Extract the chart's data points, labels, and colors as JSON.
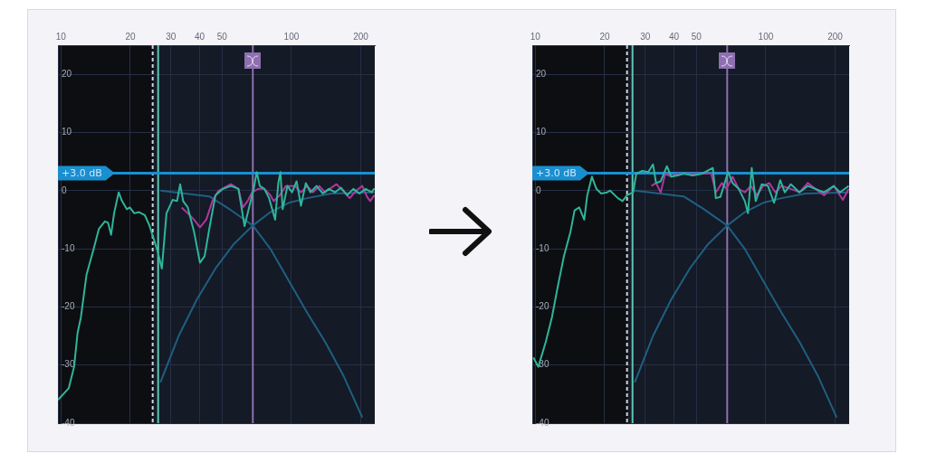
{
  "chart_data": [
    {
      "type": "line",
      "log": "x",
      "xlim": [
        9.7,
        230
      ],
      "ylim": [
        -40,
        25
      ],
      "xticks": [
        10,
        20,
        30,
        40,
        50,
        100,
        200
      ],
      "yticks": [
        -40,
        -30,
        -20,
        -10,
        0,
        10,
        20
      ],
      "grid": true,
      "series": [
        {
          "type": "line",
          "color": "#2fb59a",
          "x": [
            9.7,
            10.8,
            11.4,
            11.8,
            12.2,
            12.9,
            13.8,
            14.6,
            15.5,
            16.0,
            16.5,
            17.0,
            17.8,
            18.4,
            19.3,
            19.9,
            20.8,
            21.8,
            23.1,
            24.2,
            25.2,
            26.2,
            27.4,
            28.7,
            30.5,
            31.9,
            32.9,
            33.9,
            35.5,
            37.8,
            40.1,
            42.0,
            44.0,
            46.8,
            50.5,
            54.6,
            58.9,
            60.7,
            62.6,
            65.5,
            68.6,
            70.7,
            72.9,
            76.3,
            80.0,
            82.5,
            85.0,
            87.7,
            89.6,
            91.6,
            96.1,
            100.6,
            105.3,
            110,
            115.5,
            120.9,
            128.5,
            136.9,
            145.3,
            154.5,
            164.2,
            174.6,
            185.6,
            197.3,
            209.8,
            223,
            229
          ],
          "values": [
            -36,
            -34,
            -30.3,
            -24.5,
            -21.8,
            -14.5,
            -10.3,
            -6.6,
            -5.3,
            -5.5,
            -7.6,
            -3.9,
            -0.3,
            -1.8,
            -3.2,
            -2.9,
            -3.9,
            -3.7,
            -4.2,
            -6,
            -8.2,
            -10.3,
            -13.4,
            -3.9,
            -1.6,
            -1.8,
            1.1,
            -1.8,
            -2.9,
            -7.1,
            -12.4,
            -11.3,
            -6.6,
            -0.8,
            0.3,
            0.8,
            0.3,
            -2.9,
            -6.1,
            -2.9,
            0.3,
            3.2,
            0.8,
            0.3,
            -1.3,
            -3.2,
            -5,
            1.3,
            3.2,
            -3.2,
            0.8,
            -0.3,
            1.6,
            -2.6,
            1.3,
            -0.3,
            0.8,
            -0.5,
            0.3,
            -0.3,
            0.5,
            -0.8,
            0.3,
            -0.5,
            0.3,
            -0.3,
            0.4
          ]
        },
        {
          "type": "line",
          "color": "#b0359f",
          "x": [
            33.4,
            35.5,
            37.8,
            40.1,
            42.7,
            45.4,
            48.3,
            54.6,
            58.9,
            61.6,
            64.5,
            67.5,
            71.8,
            76.3,
            81.1,
            83.7,
            89.0,
            94.6,
            103.5,
            110,
            117,
            124,
            132,
            140,
            149,
            156.9,
            164.2,
            179,
            191,
            203,
            213.1,
            219.7,
            229
          ],
          "values": [
            -2.9,
            -3.9,
            -5,
            -6.3,
            -5,
            -1.8,
            0,
            1.1,
            0.3,
            -2.9,
            -1.8,
            -0.3,
            0.3,
            0.3,
            -0.8,
            -1.8,
            -0.8,
            0.8,
            0.8,
            -0.3,
            0.8,
            -0.3,
            0.8,
            -0.3,
            0.5,
            1.1,
            0.3,
            -1.3,
            0,
            0.8,
            -1.1,
            -1.8,
            -0.8
          ]
        },
        {
          "type": "line",
          "color": "#1f5f82",
          "x": [
            27,
            44,
            53,
            68,
            81,
            97.4,
            117,
            140,
            169,
            203
          ],
          "values": [
            0,
            -1,
            -3,
            -6,
            -10,
            -15.5,
            -21,
            -26,
            -32,
            -39
          ]
        },
        {
          "type": "line",
          "color": "#1f5f82",
          "x": [
            27,
            32.4,
            38.9,
            46.8,
            56.2,
            68,
            81.1,
            97.4,
            117,
            149,
            229
          ],
          "values": [
            -33,
            -25,
            -18.7,
            -13.4,
            -9.2,
            -6,
            -3.7,
            -2.1,
            -1.3,
            -0.5,
            -0.3
          ]
        }
      ],
      "ref_lines": [
        {
          "axis": "x",
          "value": 68,
          "color": "#8e6fb0"
        },
        {
          "axis": "x",
          "value": 26.4,
          "color": "#5fc7b0"
        },
        {
          "axis": "x",
          "value": 25,
          "color": "#d0d4dc",
          "line_style": "dashed"
        },
        {
          "axis": "y",
          "value": 3,
          "label": "+3.0 dB",
          "color": "#1a8fd0"
        }
      ],
      "bands": [
        {
          "axis": "x",
          "from": 9.7,
          "to": 25,
          "color": "#0c0e12"
        }
      ]
    },
    {
      "type": "line",
      "log": "x",
      "xlim": [
        9.7,
        230
      ],
      "ylim": [
        -40,
        25
      ],
      "xticks": [
        10,
        20,
        30,
        40,
        50,
        100,
        200
      ],
      "yticks": [
        -40,
        -30,
        -20,
        -10,
        0,
        10,
        20
      ],
      "grid": true,
      "series": [
        {
          "type": "line",
          "color": "#2fb59a",
          "x": [
            9.8,
            10.3,
            11.1,
            11.8,
            12.5,
            13.3,
            14.2,
            14.8,
            15.5,
            16.3,
            16.8,
            17.6,
            18.4,
            19.3,
            20.5,
            21.1,
            22.8,
            23.9,
            25.0,
            26.6,
            27.4,
            29.1,
            30.9,
            32.4,
            33.4,
            35.0,
            37.2,
            38.9,
            41.4,
            44.0,
            48.3,
            52.9,
            58.9,
            60.7,
            63.5,
            68.6,
            71.8,
            76.3,
            81.1,
            83.7,
            86.9,
            90.4,
            96.1,
            102.2,
            108.6,
            115.5,
            120.9,
            128.5,
            140,
            152.1,
            164.2,
            179,
            197.3,
            209.8,
            229
          ],
          "values": [
            -28.7,
            -30.3,
            -26,
            -21.8,
            -16.6,
            -11.3,
            -7.1,
            -3.4,
            -2.9,
            -5,
            -0.8,
            2.4,
            0.3,
            -0.5,
            -0.3,
            0,
            -1.3,
            -1.8,
            -0.8,
            -0.3,
            2.9,
            3.4,
            3.2,
            4.5,
            1.3,
            1.6,
            4.2,
            2.4,
            2.6,
            2.9,
            2.6,
            2.9,
            3.9,
            -1.3,
            -1.1,
            3.2,
            1.3,
            0.3,
            -1.8,
            -3.9,
            3.9,
            -1.8,
            1.1,
            0.8,
            -2.1,
            1.8,
            -0.3,
            1.1,
            -0.3,
            0.8,
            0.3,
            -0.3,
            0.8,
            -0.3,
            0.8
          ]
        },
        {
          "type": "line",
          "color": "#b0359f",
          "x": [
            31.9,
            33.4,
            35,
            36.6,
            38.9,
            41.4,
            46.8,
            52.9,
            58.0,
            60.7,
            64.5,
            67.5,
            71.8,
            76.3,
            81.1,
            86.2,
            91.6,
            97.4,
            103.5,
            110,
            117,
            128.5,
            140,
            152.1,
            164.2,
            179,
            197.3,
            216,
            229
          ],
          "values": [
            0.8,
            1.3,
            -0.3,
            2.9,
            2.4,
            2.9,
            2.9,
            2.9,
            2.9,
            -0.3,
            1.3,
            0.3,
            2.4,
            0.3,
            -0.3,
            0.8,
            -0.8,
            0.8,
            1.3,
            -0.3,
            0.8,
            0.3,
            -0.3,
            1.3,
            0.3,
            -0.8,
            0.8,
            -1.6,
            0.3
          ]
        },
        {
          "type": "line",
          "color": "#1f5f82",
          "x": [
            27,
            44,
            53,
            68,
            81,
            97.4,
            117,
            140,
            169,
            203
          ],
          "values": [
            0,
            -1,
            -3,
            -6,
            -10,
            -15.5,
            -21,
            -26,
            -32,
            -39
          ]
        },
        {
          "type": "line",
          "color": "#1f5f82",
          "x": [
            27,
            32.4,
            38.9,
            46.8,
            56.2,
            68,
            81.1,
            97.4,
            117,
            149,
            229
          ],
          "values": [
            -33,
            -25,
            -18.7,
            -13.4,
            -9.2,
            -6,
            -3.7,
            -2.1,
            -1.3,
            -0.5,
            -0.3
          ]
        }
      ],
      "ref_lines": [
        {
          "axis": "x",
          "value": 68,
          "color": "#8e6fb0"
        },
        {
          "axis": "x",
          "value": 26.4,
          "color": "#5fc7b0"
        },
        {
          "axis": "x",
          "value": 25,
          "color": "#d0d4dc",
          "line_style": "dashed"
        },
        {
          "axis": "y",
          "value": 3,
          "label": "+3.0 dB",
          "color": "#1a8fd0"
        }
      ],
      "bands": [
        {
          "axis": "x",
          "from": 9.7,
          "to": 25,
          "color": "#0c0e12"
        }
      ]
    }
  ]
}
